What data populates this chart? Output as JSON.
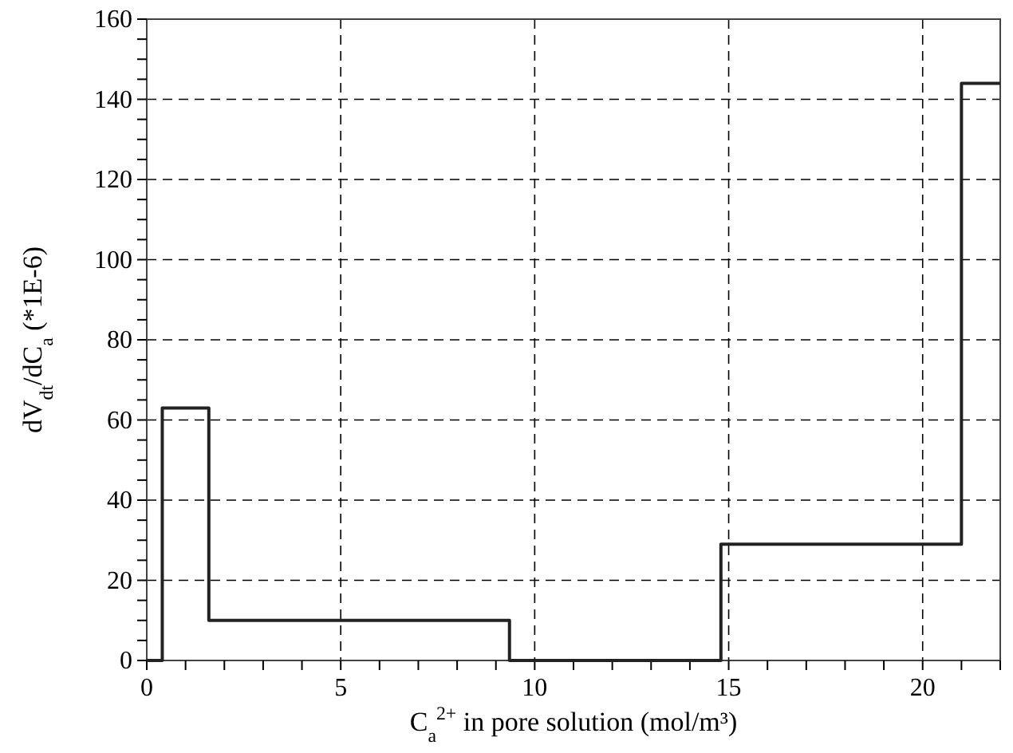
{
  "chart_data": {
    "type": "step",
    "xlabel": "C$_{a}$$^{2+}$ in pore solution (mol/m³)",
    "ylabel": "dV$_{dt}$/dC$_{a}$ (*1E-6)",
    "series": [
      {
        "color": "#222222",
        "x": [
          0,
          0.4,
          1.6,
          9.35,
          14.8,
          21,
          22
        ],
        "values": [
          0,
          63,
          10,
          0,
          29,
          144,
          144
        ]
      }
    ],
    "xlim": [
      0,
      22
    ],
    "xticks": [
      0,
      {
        "value": 1,
        "label": null
      },
      {
        "value": 2,
        "label": null
      },
      {
        "value": 3,
        "label": null
      },
      {
        "value": 4,
        "label": null
      },
      5,
      {
        "value": 6,
        "label": null
      },
      {
        "value": 7,
        "label": null
      },
      {
        "value": 8,
        "label": null
      },
      {
        "value": 9,
        "label": null
      },
      10,
      {
        "value": 11,
        "label": null
      },
      {
        "value": 12,
        "label": null
      },
      {
        "value": 13,
        "label": null
      },
      {
        "value": 14,
        "label": null
      },
      15,
      {
        "value": 16,
        "label": null
      },
      {
        "value": 17,
        "label": null
      },
      {
        "value": 18,
        "label": null
      },
      {
        "value": 19,
        "label": null
      },
      20,
      {
        "value": 21,
        "label": null
      },
      {
        "value": 22,
        "label": null
      }
    ],
    "ylim": [
      0,
      160
    ],
    "yticks": [
      0,
      {
        "value": 5,
        "label": null
      },
      {
        "value": 10,
        "label": null
      },
      {
        "value": 15,
        "label": null
      },
      20,
      {
        "value": 25,
        "label": null
      },
      {
        "value": 30,
        "label": null
      },
      {
        "value": 35,
        "label": null
      },
      40,
      {
        "value": 45,
        "label": null
      },
      {
        "value": 50,
        "label": null
      },
      {
        "value": 55,
        "label": null
      },
      60,
      {
        "value": 65,
        "label": null
      },
      {
        "value": 70,
        "label": null
      },
      {
        "value": 75,
        "label": null
      },
      80,
      {
        "value": 85,
        "label": null
      },
      {
        "value": 90,
        "label": null
      },
      {
        "value": 95,
        "label": null
      },
      100,
      {
        "value": 105,
        "label": null
      },
      {
        "value": 110,
        "label": null
      },
      {
        "value": 115,
        "label": null
      },
      120,
      {
        "value": 125,
        "label": null
      },
      {
        "value": 130,
        "label": null
      },
      {
        "value": 135,
        "label": null
      },
      140,
      {
        "value": 145,
        "label": null
      },
      {
        "value": 150,
        "label": null
      },
      {
        "value": 155,
        "label": null
      },
      160
    ],
    "grid": true,
    "line_style": "solid"
  }
}
